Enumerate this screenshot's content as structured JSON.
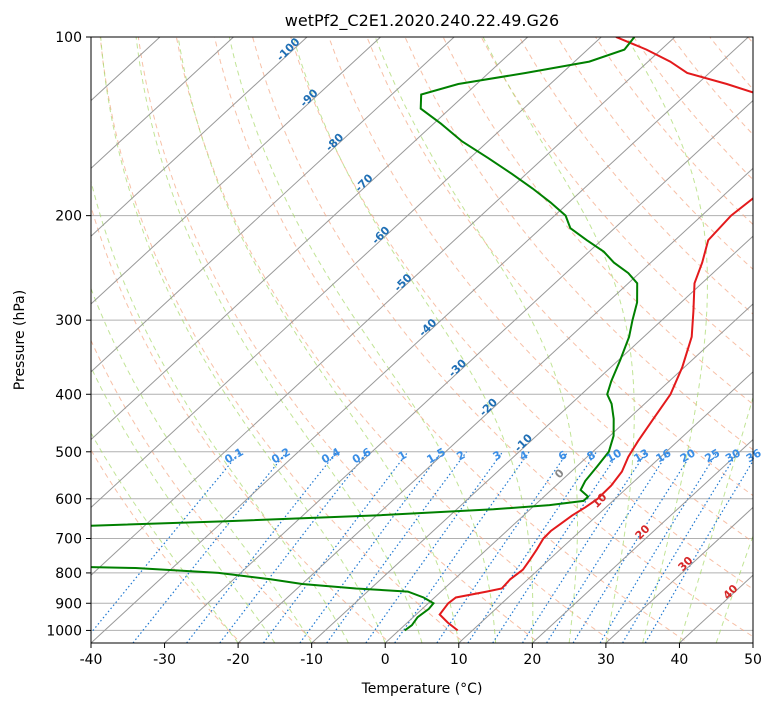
{
  "chart_data": {
    "type": "line",
    "chart_kind": "skew-T log-P diagram",
    "title": "wetPf2_C2E1.2020.240.22.49.G26",
    "xlabel": "Temperature (°C)",
    "ylabel": "Pressure (hPa)",
    "xlim": [
      -40,
      50
    ],
    "ylim": [
      1050,
      100
    ],
    "y_scale": "log",
    "grid": true,
    "x_ticks": [
      -40,
      -30,
      -20,
      -10,
      0,
      10,
      20,
      30,
      40,
      50
    ],
    "y_ticks": [
      100,
      200,
      300,
      400,
      500,
      600,
      700,
      800,
      900,
      1000
    ],
    "colors": {
      "temperature": "#e31a1c",
      "dewpoint": "#008000",
      "isotherm": "#999999",
      "dry_adiabat": "#f4a582",
      "moist_adiabat": "#a6d96a",
      "mixing_ratio": "#1f78d1",
      "isotherm_label": "#1f6fb5",
      "moist_label": "#d62728"
    },
    "series": [
      {
        "key": "temperature",
        "points": [
          [
            8.0,
            1000
          ],
          [
            5.5,
            970
          ],
          [
            3.2,
            940
          ],
          [
            2.7,
            900
          ],
          [
            2.9,
            880
          ],
          [
            6.2,
            860
          ],
          [
            7.8,
            850
          ],
          [
            7.6,
            820
          ],
          [
            7.9,
            790
          ],
          [
            7.4,
            760
          ],
          [
            6.8,
            730
          ],
          [
            6.1,
            700
          ],
          [
            6.0,
            680
          ],
          [
            6.3,
            660
          ],
          [
            6.6,
            640
          ],
          [
            7.2,
            620
          ],
          [
            7.6,
            600
          ],
          [
            7.5,
            570
          ],
          [
            6.9,
            540
          ],
          [
            5.6,
            510
          ],
          [
            4.6,
            480
          ],
          [
            3.4,
            440
          ],
          [
            2.1,
            400
          ],
          [
            -0.3,
            360
          ],
          [
            -3.5,
            320
          ],
          [
            -7.0,
            290
          ],
          [
            -11.0,
            260
          ],
          [
            -13.0,
            240
          ],
          [
            -15.5,
            220
          ],
          [
            -16.0,
            200
          ],
          [
            -15.5,
            185
          ],
          [
            -15.0,
            170
          ],
          [
            -15.5,
            160
          ],
          [
            -17.0,
            150
          ],
          [
            -21.0,
            140
          ],
          [
            -25.0,
            130
          ],
          [
            -30.0,
            125
          ],
          [
            -36.0,
            120
          ],
          [
            -43.0,
            115
          ],
          [
            -47.0,
            110
          ],
          [
            -52.0,
            105
          ],
          [
            -58.0,
            100
          ]
        ]
      },
      {
        "key": "dewpoint",
        "points": [
          [
            0.8,
            1000
          ],
          [
            1.0,
            980
          ],
          [
            0.6,
            950
          ],
          [
            0.9,
            920
          ],
          [
            0.7,
            900
          ],
          [
            -1.5,
            880
          ],
          [
            -4.5,
            860
          ],
          [
            -12.0,
            850
          ],
          [
            -20.0,
            835
          ],
          [
            -25.0,
            820
          ],
          [
            -33.0,
            800
          ],
          [
            -45.0,
            785
          ],
          [
            -80.0,
            770
          ],
          [
            -70.0,
            740
          ],
          [
            -63.0,
            722
          ],
          [
            -61.0,
            712
          ],
          [
            -62.0,
            703
          ],
          [
            -66.0,
            695
          ],
          [
            -76.0,
            685
          ],
          [
            -80.0,
            680
          ],
          [
            -60.0,
            668
          ],
          [
            -40.0,
            655
          ],
          [
            -20.0,
            640
          ],
          [
            -5.0,
            625
          ],
          [
            2.0,
            615
          ],
          [
            6.0,
            605
          ],
          [
            6.0,
            595
          ],
          [
            4.0,
            580
          ],
          [
            3.3,
            560
          ],
          [
            2.8,
            530
          ],
          [
            2.2,
            500
          ],
          [
            0.5,
            470
          ],
          [
            -2.0,
            440
          ],
          [
            -4.5,
            415
          ],
          [
            -6.5,
            400
          ],
          [
            -7.9,
            380
          ],
          [
            -9.8,
            350
          ],
          [
            -12.0,
            320
          ],
          [
            -14.0,
            300
          ],
          [
            -16.0,
            280
          ],
          [
            -18.8,
            260
          ],
          [
            -21.5,
            250
          ],
          [
            -25.0,
            240
          ],
          [
            -28.0,
            230
          ],
          [
            -32.0,
            220
          ],
          [
            -36.0,
            210
          ],
          [
            -38.5,
            200
          ],
          [
            -42.5,
            190
          ],
          [
            -47.0,
            180
          ],
          [
            -52.0,
            170
          ],
          [
            -57.5,
            160
          ],
          [
            -63.5,
            150
          ],
          [
            -69.0,
            140
          ],
          [
            -74.0,
            132
          ],
          [
            -76.0,
            125
          ],
          [
            -72.5,
            120
          ],
          [
            -65.0,
            115
          ],
          [
            -58.0,
            110
          ],
          [
            -55.0,
            105
          ],
          [
            -55.5,
            100
          ]
        ]
      }
    ],
    "isotherm_labels": [
      "-100",
      "-90",
      "-80",
      "-70",
      "-60",
      "-50",
      "-40",
      "-30",
      "-20",
      "-10"
    ],
    "mixing_ratio_labels": [
      "0.1",
      "0.2",
      "0.4",
      "0.6",
      "1",
      "1.5",
      "2",
      "3",
      "4",
      "6",
      "8",
      "10",
      "13",
      "16",
      "20",
      "25",
      "30",
      "36"
    ],
    "moist_adiabat_labels": [
      "0",
      "10",
      "20",
      "30",
      "40"
    ]
  }
}
